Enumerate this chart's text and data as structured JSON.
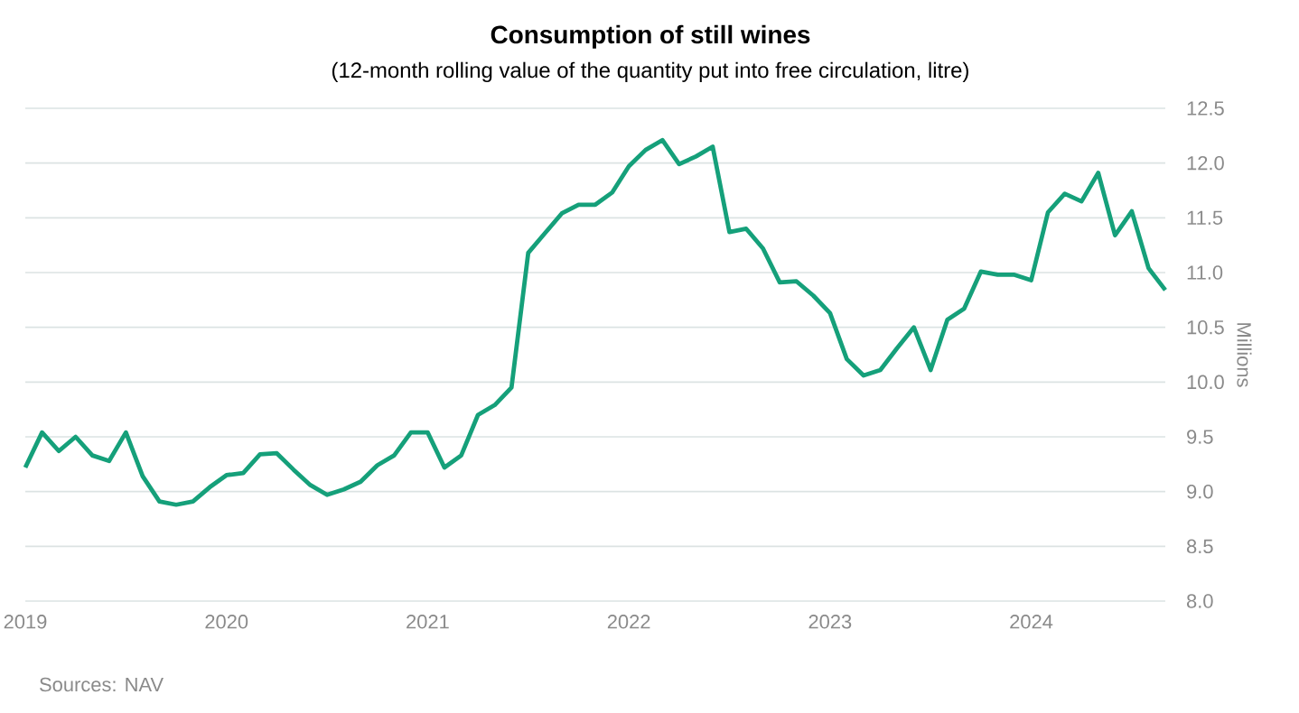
{
  "chart_data": {
    "type": "line",
    "title": "Consumption of still wines",
    "subtitle": "(12-month rolling value of the quantity put into free circulation, litre)",
    "ylabel": "Millions",
    "x": [
      "2019-01",
      "2019-02",
      "2019-03",
      "2019-04",
      "2019-05",
      "2019-06",
      "2019-07",
      "2019-08",
      "2019-09",
      "2019-10",
      "2019-11",
      "2019-12",
      "2020-01",
      "2020-02",
      "2020-03",
      "2020-04",
      "2020-05",
      "2020-06",
      "2020-07",
      "2020-08",
      "2020-09",
      "2020-10",
      "2020-11",
      "2020-12",
      "2021-01",
      "2021-02",
      "2021-03",
      "2021-04",
      "2021-05",
      "2021-06",
      "2021-07",
      "2021-08",
      "2021-09",
      "2021-10",
      "2021-11",
      "2021-12",
      "2022-01",
      "2022-02",
      "2022-03",
      "2022-04",
      "2022-05",
      "2022-06",
      "2022-07",
      "2022-08",
      "2022-09",
      "2022-10",
      "2022-11",
      "2022-12",
      "2023-01",
      "2023-02",
      "2023-03",
      "2023-04",
      "2023-05",
      "2023-06",
      "2023-07",
      "2023-08",
      "2023-09",
      "2023-10",
      "2023-11",
      "2023-12",
      "2024-01",
      "2024-02",
      "2024-03",
      "2024-04",
      "2024-05",
      "2024-06",
      "2024-07",
      "2024-08",
      "2024-09"
    ],
    "series": [
      {
        "color": "#15a07a",
        "values": [
          9.22,
          9.54,
          9.37,
          9.5,
          9.33,
          9.28,
          9.54,
          9.14,
          8.91,
          8.88,
          8.91,
          9.04,
          9.15,
          9.17,
          9.34,
          9.35,
          9.2,
          9.06,
          8.97,
          9.02,
          9.09,
          9.24,
          9.33,
          9.54,
          9.54,
          9.22,
          9.33,
          9.7,
          9.79,
          9.95,
          11.18,
          11.36,
          11.54,
          11.62,
          11.62,
          11.73,
          11.97,
          12.12,
          12.21,
          11.99,
          12.06,
          12.15,
          11.37,
          11.4,
          11.22,
          10.91,
          10.92,
          10.79,
          10.63,
          10.21,
          10.06,
          10.11,
          10.31,
          10.5,
          10.11,
          10.57,
          10.67,
          11.01,
          10.98,
          10.98,
          10.93,
          11.55,
          11.72,
          11.65,
          11.91,
          11.34,
          11.56,
          11.04,
          10.84
        ]
      }
    ],
    "xlim": [
      "2019-01",
      "2024-09"
    ],
    "xticks": [
      "2019",
      "2020",
      "2021",
      "2022",
      "2023",
      "2024"
    ],
    "ylim": [
      8,
      12.5
    ],
    "yticks": [
      {
        "value": 8,
        "label": "8.0"
      },
      8.5,
      {
        "value": 9,
        "label": "9.0"
      },
      9.5,
      {
        "value": 10,
        "label": "10.0"
      },
      10.5,
      {
        "value": 11,
        "label": "11.0"
      },
      11.5,
      {
        "value": 12,
        "label": "12.0"
      },
      12.5
    ],
    "grid": "y",
    "line_style": "solid",
    "marker": "none",
    "annotations": [
      "Sources: NAV"
    ]
  }
}
